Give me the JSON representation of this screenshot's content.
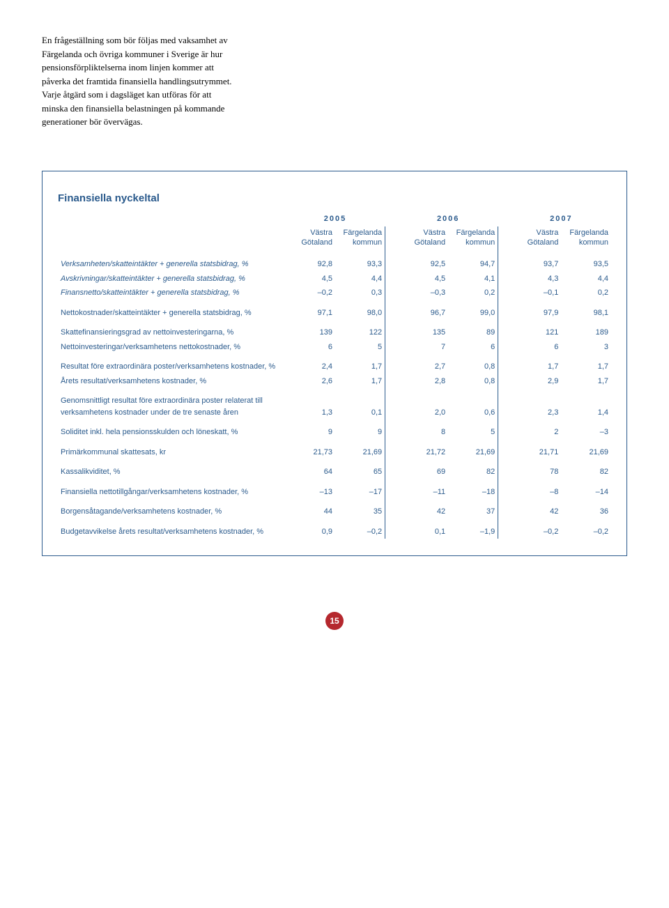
{
  "intro": {
    "text": "En frågeställning som bör följas med vaksamhet av Färgelanda och övriga kommuner i Sverige är hur pensionsförpliktelserna inom linjen kommer att påverka det framtida finansiella handlingsutrymmet. Varje åtgärd som i dagsläget kan utföras för att minska den finansiella belastningen på kommande generationer bör övervägas."
  },
  "table": {
    "title": "Finansiella nyckeltal",
    "years": [
      "2005",
      "2006",
      "2007"
    ],
    "col_headers": {
      "vg_line1": "Västra",
      "vg_line2": "Götaland",
      "fk_line1": "Färgelanda",
      "fk_line2": "kommun"
    },
    "colors": {
      "border": "#2a5a8c",
      "text": "#2a5a8c",
      "page_circle": "#b5282e"
    },
    "rows": [
      {
        "group_start": true,
        "italic": true,
        "label": "Verksamheten/skatteintäkter + generella statsbidrag, %",
        "v": [
          "92,8",
          "93,3",
          "92,5",
          "94,7",
          "93,7",
          "93,5"
        ]
      },
      {
        "italic": true,
        "label": "Avskrivningar/skatteintäkter + generella statsbidrag, %",
        "v": [
          "4,5",
          "4,4",
          "4,5",
          "4,1",
          "4,3",
          "4,4"
        ]
      },
      {
        "italic": true,
        "label": "Finansnetto/skatteintäkter + generella statsbidrag, %",
        "v": [
          "–0,2",
          "0,3",
          "–0,3",
          "0,2",
          "–0,1",
          "0,2"
        ]
      },
      {
        "group_start": true,
        "label": "Nettokostnader/skatteintäkter + generella statsbidrag, %",
        "v": [
          "97,1",
          "98,0",
          "96,7",
          "99,0",
          "97,9",
          "98,1"
        ]
      },
      {
        "group_start": true,
        "label": "Skattefinansieringsgrad av nettoinvesteringarna, %",
        "v": [
          "139",
          "122",
          "135",
          "89",
          "121",
          "189"
        ]
      },
      {
        "label": "Nettoinvesteringar/verksamhetens nettokostnader, %",
        "v": [
          "6",
          "5",
          "7",
          "6",
          "6",
          "3"
        ]
      },
      {
        "group_start": true,
        "label": "Resultat före extraordinära poster/verksamhetens kostnader, %",
        "v": [
          "2,4",
          "1,7",
          "2,7",
          "0,8",
          "1,7",
          "1,7"
        ]
      },
      {
        "label": "Årets resultat/verksamhetens kostnader, %",
        "v": [
          "2,6",
          "1,7",
          "2,8",
          "0,8",
          "2,9",
          "1,7"
        ]
      },
      {
        "group_start": true,
        "label": "Genomsnittligt resultat före extraordinära poster relaterat till verksamhetens kostnader under de tre senaste åren",
        "v": [
          "1,3",
          "0,1",
          "2,0",
          "0,6",
          "2,3",
          "1,4"
        ]
      },
      {
        "group_start": true,
        "label": "Soliditet inkl. hela pensionsskulden och löneskatt, %",
        "v": [
          "9",
          "9",
          "8",
          "5",
          "2",
          "–3"
        ]
      },
      {
        "group_start": true,
        "label": "Primärkommunal skattesats, kr",
        "v": [
          "21,73",
          "21,69",
          "21,72",
          "21,69",
          "21,71",
          "21,69"
        ]
      },
      {
        "group_start": true,
        "label": "Kassalikviditet, %",
        "v": [
          "64",
          "65",
          "69",
          "82",
          "78",
          "82"
        ]
      },
      {
        "group_start": true,
        "label": "Finansiella nettotillgångar/verksamhetens kostnader, %",
        "v": [
          "–13",
          "–17",
          "–11",
          "–18",
          "–8",
          "–14"
        ]
      },
      {
        "group_start": true,
        "label": "Borgensåtagande/verksamhetens kostnader, %",
        "v": [
          "44",
          "35",
          "42",
          "37",
          "42",
          "36"
        ]
      },
      {
        "group_start": true,
        "label": "Budgetavvikelse årets resultat/verksamhetens kostnader, %",
        "v": [
          "0,9",
          "–0,2",
          "0,1",
          "–1,9",
          "–0,2",
          "–0,2"
        ]
      }
    ]
  },
  "page_number": "15"
}
